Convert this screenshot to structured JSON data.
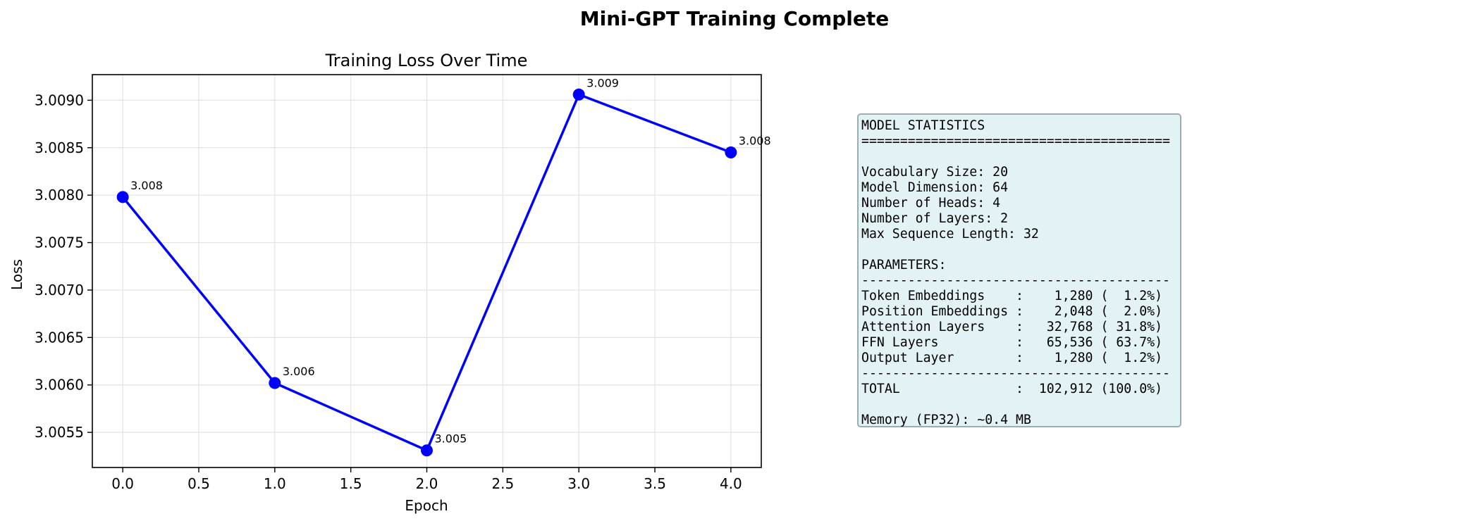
{
  "figure": {
    "suptitle": "Mini-GPT Training Complete"
  },
  "chart_data": {
    "type": "line",
    "title": "Training Loss Over Time",
    "xlabel": "Epoch",
    "ylabel": "Loss",
    "x": [
      0,
      1,
      2,
      3,
      4
    ],
    "series": [
      {
        "values": [
          3.00798,
          3.00602,
          3.00531,
          3.00906,
          3.00845
        ],
        "color": "#0000ff",
        "marker": "circle"
      }
    ],
    "data_labels": [
      "3.008",
      "3.006",
      "3.005",
      "3.009",
      "3.008"
    ],
    "xlim": [
      -0.2,
      4.2
    ],
    "ylim": [
      3.00513,
      3.00927
    ],
    "xticks": [
      0.0,
      0.5,
      1.0,
      1.5,
      2.0,
      2.5,
      3.0,
      3.5,
      4.0
    ],
    "xtick_labels": [
      "0.0",
      "0.5",
      "1.0",
      "1.5",
      "2.0",
      "2.5",
      "3.0",
      "3.5",
      "4.0"
    ],
    "yticks": [
      3.0055,
      3.006,
      3.0065,
      3.007,
      3.0075,
      3.008,
      3.0085,
      3.009
    ],
    "ytick_labels": [
      "3.0055",
      "3.0060",
      "3.0065",
      "3.0070",
      "3.0075",
      "3.0080",
      "3.0085",
      "3.0090"
    ],
    "grid": true
  },
  "stats_panel": {
    "background_color": "#e3f2f5",
    "border_color": "#9aaeb2",
    "lines": [
      "MODEL STATISTICS",
      "========================================",
      "",
      "Vocabulary Size: 20",
      "Model Dimension: 64",
      "Number of Heads: 4",
      "Number of Layers: 2",
      "Max Sequence Length: 32",
      "",
      "PARAMETERS:",
      "----------------------------------------",
      "Token Embeddings    :    1,280 (  1.2%)",
      "Position Embeddings :    2,048 (  2.0%)",
      "Attention Layers    :   32,768 ( 31.8%)",
      "FFN Layers          :   65,536 ( 63.7%)",
      "Output Layer        :    1,280 (  1.2%)",
      "----------------------------------------",
      "TOTAL               :  102,912 (100.0%)",
      "",
      "Memory (FP32): ~0.4 MB"
    ]
  }
}
